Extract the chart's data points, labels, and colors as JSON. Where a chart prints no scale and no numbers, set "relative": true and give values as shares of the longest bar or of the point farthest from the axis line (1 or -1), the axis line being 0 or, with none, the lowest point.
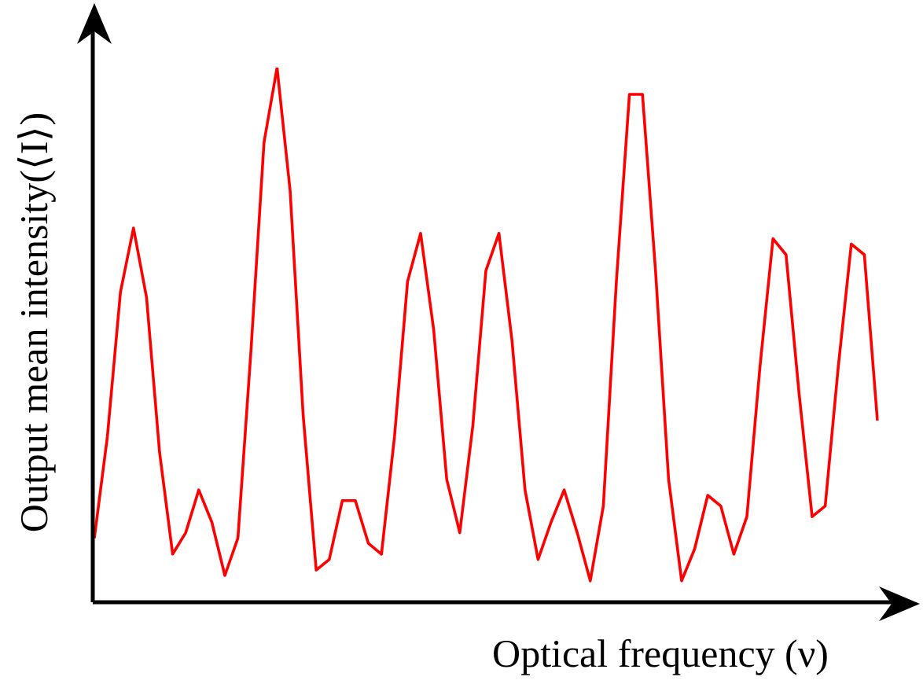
{
  "chart_data": {
    "type": "line",
    "relative": true,
    "xlabel": "Optical frequency (ν)",
    "ylabel": "Output mean intensity(⟨I⟩)",
    "categories": [
      null,
      null,
      null,
      null,
      null,
      null,
      null,
      null,
      null,
      null,
      null,
      null,
      null,
      null,
      null,
      null,
      null,
      null,
      null,
      null,
      null,
      null,
      null,
      null,
      null,
      null,
      null,
      null,
      null,
      null,
      null,
      null,
      null,
      null,
      null,
      null,
      null,
      null,
      null,
      null,
      null,
      null,
      null,
      null,
      null,
      null,
      null,
      null,
      null,
      null,
      null,
      null,
      null,
      null,
      null,
      null,
      null,
      null,
      null,
      null,
      null
    ],
    "marker": "none",
    "line_style": "solid",
    "series": [
      {
        "color": "#ff0000",
        "values": [
          0.12,
          0.31,
          0.58,
          0.7,
          0.57,
          0.28,
          0.09,
          0.13,
          0.21,
          0.15,
          0.05,
          0.12,
          0.47,
          0.86,
          1,
          0.77,
          0.35,
          0.06,
          0.08,
          0.19,
          0.19,
          0.11,
          0.09,
          0.31,
          0.6,
          0.69,
          0.51,
          0.23,
          0.13,
          0.33,
          0.62,
          0.69,
          0.49,
          0.21,
          0.08,
          0.15,
          0.21,
          0.13,
          0.04,
          0.18,
          0.6,
          0.95,
          0.95,
          0.62,
          0.23,
          0.04,
          0.1,
          0.2,
          0.18,
          0.09,
          0.16,
          0.44,
          0.68,
          0.65,
          0.39,
          0.16,
          0.18,
          0.44,
          0.67,
          0.65,
          0.34
        ]
      }
    ]
  }
}
